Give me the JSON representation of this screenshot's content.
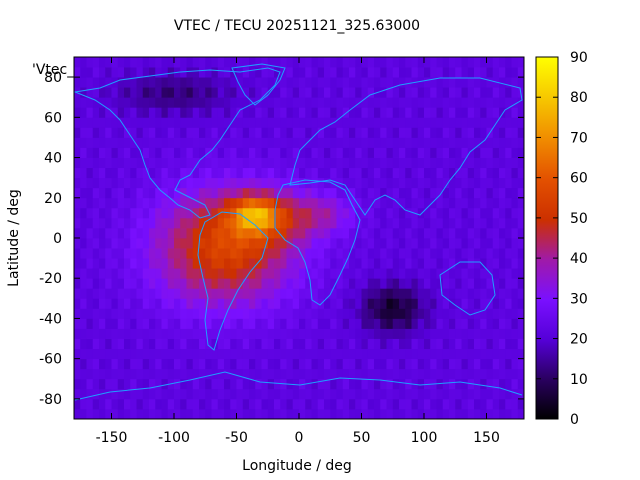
{
  "chart_data": {
    "type": "heatmap",
    "title": "VTEC / TECU 20251121_325.63000",
    "xlabel": "Longitude / deg",
    "ylabel": "Latitude / deg",
    "series_label": "'Vtec_",
    "xlim": [
      -180,
      180
    ],
    "ylim": [
      -90,
      90
    ],
    "x_ticks": [
      -150,
      -100,
      -50,
      0,
      50,
      100,
      150
    ],
    "y_ticks": [
      -80,
      -60,
      -40,
      -20,
      0,
      20,
      40,
      60,
      80
    ],
    "colorbar": {
      "range": [
        0,
        90
      ],
      "ticks": [
        0,
        10,
        20,
        30,
        40,
        50,
        60,
        70,
        80,
        90
      ],
      "palette": "black-purple-red-orange-yellow"
    },
    "grid": false,
    "cell_deg": 5,
    "features": {
      "background_level": 22,
      "peak_region": {
        "lon": -35,
        "lat": 12,
        "value": 88
      },
      "enhanced_band": {
        "lon_range": [
          -150,
          50
        ],
        "lat_range": [
          -40,
          28
        ],
        "level": 55
      },
      "low_region": {
        "lon": 75,
        "lat": -35,
        "value": 5
      },
      "polar_low": {
        "lon": -100,
        "lat": 72,
        "value": 12
      }
    }
  },
  "colors": {
    "coastline": "#1ea0ff",
    "axis": "#000000",
    "background": "#ffffff"
  }
}
